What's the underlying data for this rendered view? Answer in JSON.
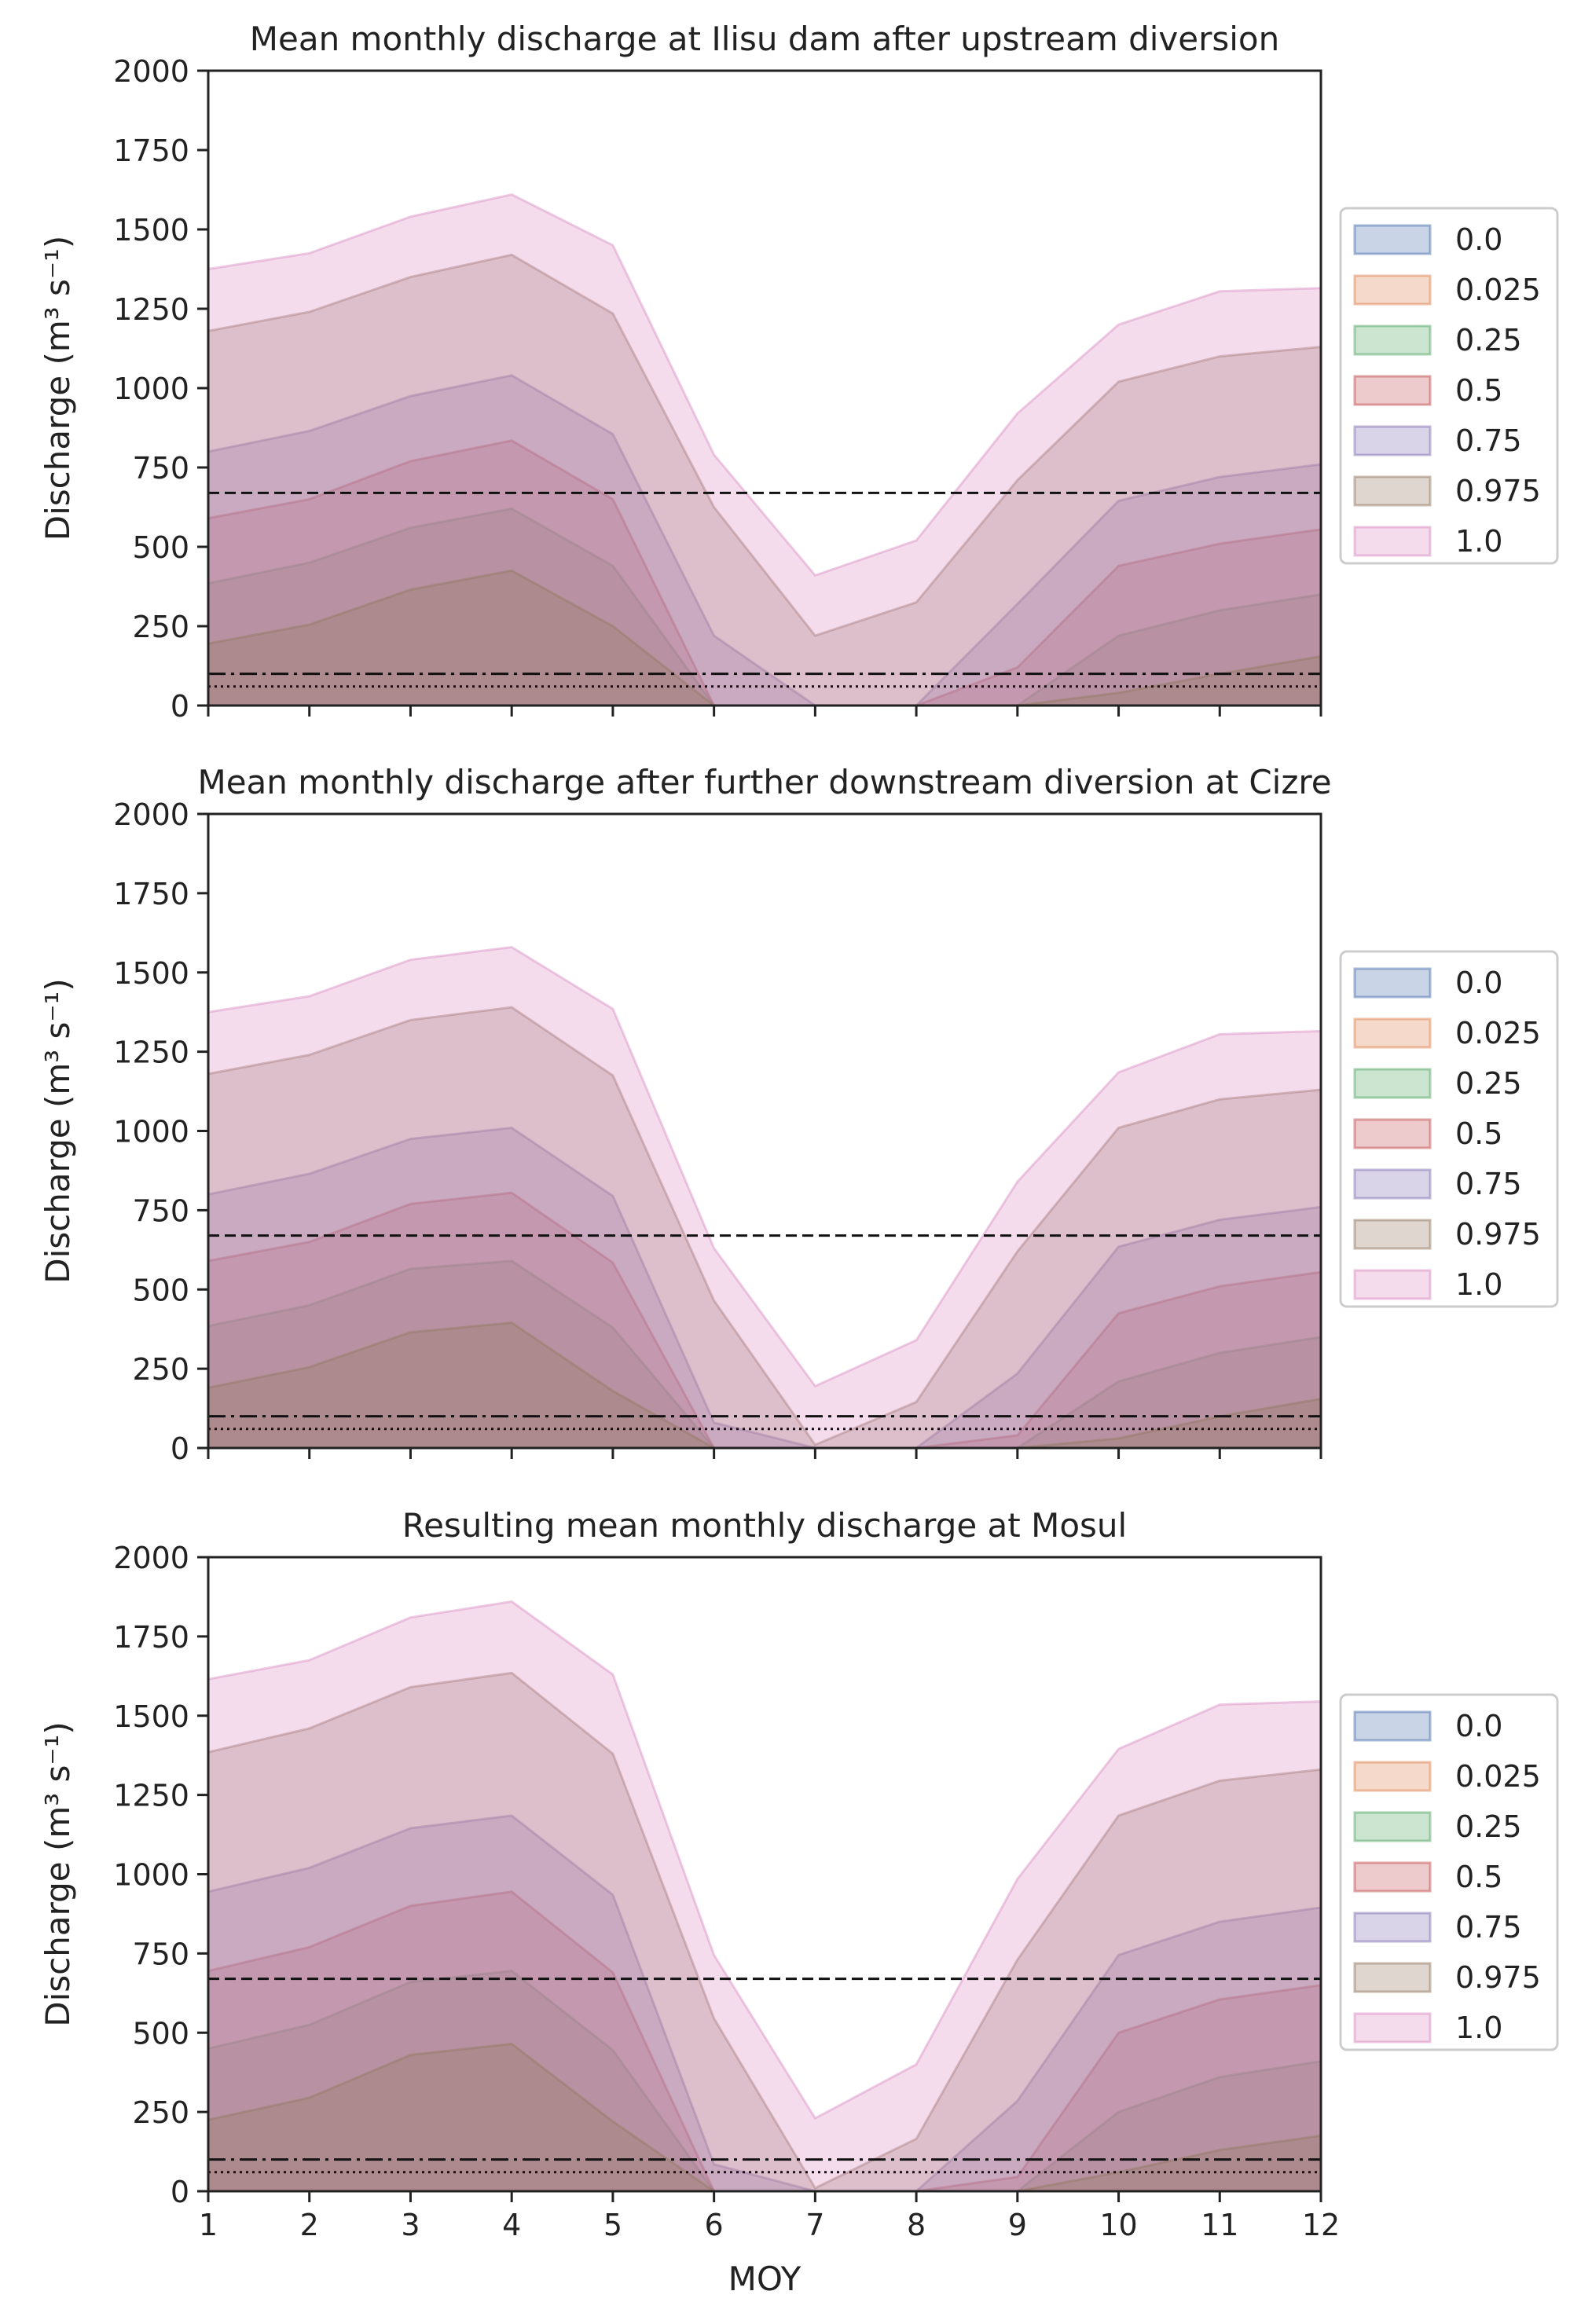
{
  "chart_data": [
    {
      "type": "area",
      "title": "Mean monthly discharge at Ilisu dam after upstream diversion",
      "xlabel": "",
      "ylabel": "Discharge (m³ s⁻¹)",
      "ylim": [
        0,
        2000
      ],
      "xlim": [
        1,
        12
      ],
      "x": [
        1,
        2,
        3,
        4,
        5,
        6,
        7,
        8,
        9,
        10,
        11,
        12
      ],
      "x_tick_labels_visible": false,
      "yticks": [
        "0",
        "250",
        "500",
        "750",
        "1000",
        "1250",
        "1500",
        "1750",
        "2000"
      ],
      "legend_position": "right",
      "grid": false,
      "series": [
        {
          "name": "0.0",
          "color": "#4c72b0",
          "values": [
            0,
            0,
            0,
            0,
            0,
            0,
            0,
            0,
            0,
            0,
            0,
            0
          ]
        },
        {
          "name": "0.025",
          "color": "#dd8452",
          "values": [
            0,
            0,
            0,
            0,
            0,
            0,
            0,
            0,
            0,
            0,
            0,
            0
          ]
        },
        {
          "name": "0.25",
          "color": "#55a868",
          "values": [
            385,
            450,
            560,
            620,
            440,
            0,
            0,
            0,
            0,
            220,
            300,
            350
          ]
        },
        {
          "name": "0.5",
          "color": "#c44e52",
          "values": [
            590,
            650,
            770,
            835,
            650,
            0,
            0,
            0,
            120,
            440,
            510,
            555
          ]
        },
        {
          "name": "0.75",
          "color": "#8172b3",
          "values": [
            800,
            865,
            975,
            1040,
            855,
            220,
            0,
            0,
            320,
            645,
            720,
            760
          ]
        },
        {
          "name": "0.975",
          "color": "#937860",
          "values": [
            1180,
            1240,
            1350,
            1420,
            1235,
            625,
            220,
            325,
            710,
            1020,
            1100,
            1130
          ]
        },
        {
          "name": "1.0",
          "color": "#da8bc3",
          "values": [
            1375,
            1425,
            1540,
            1610,
            1450,
            790,
            410,
            520,
            920,
            1200,
            1305,
            1315
          ]
        }
      ],
      "extra_band": {
        "color": "#937860",
        "values": [
          195,
          255,
          365,
          425,
          250,
          0,
          0,
          0,
          0,
          40,
          100,
          155
        ]
      },
      "reference_lines": [
        {
          "style": "dashed",
          "value": 670
        },
        {
          "style": "dashdot",
          "value": 100
        },
        {
          "style": "dotted",
          "value": 60
        }
      ]
    },
    {
      "type": "area",
      "title": "Mean monthly discharge after further downstream diversion at Cizre",
      "xlabel": "",
      "ylabel": "Discharge (m³ s⁻¹)",
      "ylim": [
        0,
        2000
      ],
      "xlim": [
        1,
        12
      ],
      "x": [
        1,
        2,
        3,
        4,
        5,
        6,
        7,
        8,
        9,
        10,
        11,
        12
      ],
      "x_tick_labels_visible": false,
      "yticks": [
        "0",
        "250",
        "500",
        "750",
        "1000",
        "1250",
        "1500",
        "1750",
        "2000"
      ],
      "legend_position": "right",
      "grid": false,
      "series": [
        {
          "name": "0.0",
          "color": "#4c72b0",
          "values": [
            0,
            0,
            0,
            0,
            0,
            0,
            0,
            0,
            0,
            0,
            0,
            0
          ]
        },
        {
          "name": "0.025",
          "color": "#dd8452",
          "values": [
            0,
            0,
            0,
            0,
            0,
            0,
            0,
            0,
            0,
            0,
            0,
            0
          ]
        },
        {
          "name": "0.25",
          "color": "#55a868",
          "values": [
            385,
            450,
            565,
            590,
            380,
            0,
            0,
            0,
            0,
            210,
            300,
            350
          ]
        },
        {
          "name": "0.5",
          "color": "#c44e52",
          "values": [
            590,
            650,
            770,
            805,
            585,
            0,
            0,
            0,
            40,
            425,
            510,
            555
          ]
        },
        {
          "name": "0.75",
          "color": "#8172b3",
          "values": [
            800,
            865,
            975,
            1010,
            795,
            80,
            0,
            0,
            235,
            635,
            720,
            760
          ]
        },
        {
          "name": "0.975",
          "color": "#937860",
          "values": [
            1180,
            1240,
            1350,
            1390,
            1175,
            465,
            10,
            145,
            620,
            1010,
            1100,
            1130
          ]
        },
        {
          "name": "1.0",
          "color": "#da8bc3",
          "values": [
            1375,
            1425,
            1540,
            1580,
            1385,
            630,
            195,
            340,
            840,
            1185,
            1305,
            1315
          ]
        }
      ],
      "extra_band": {
        "color": "#937860",
        "values": [
          190,
          255,
          365,
          395,
          180,
          0,
          0,
          0,
          0,
          30,
          100,
          155
        ]
      },
      "reference_lines": [
        {
          "style": "dashed",
          "value": 670
        },
        {
          "style": "dashdot",
          "value": 100
        },
        {
          "style": "dotted",
          "value": 60
        }
      ]
    },
    {
      "type": "area",
      "title": "Resulting mean monthly discharge at Mosul",
      "xlabel": "MOY",
      "ylabel": "Discharge (m³ s⁻¹)",
      "ylim": [
        0,
        2000
      ],
      "xlim": [
        1,
        12
      ],
      "x": [
        1,
        2,
        3,
        4,
        5,
        6,
        7,
        8,
        9,
        10,
        11,
        12
      ],
      "x_tick_labels_visible": true,
      "yticks": [
        "0",
        "250",
        "500",
        "750",
        "1000",
        "1250",
        "1500",
        "1750",
        "2000"
      ],
      "legend_position": "right",
      "grid": false,
      "series": [
        {
          "name": "0.0",
          "color": "#4c72b0",
          "values": [
            0,
            0,
            0,
            0,
            0,
            0,
            0,
            0,
            0,
            0,
            0,
            0
          ]
        },
        {
          "name": "0.025",
          "color": "#dd8452",
          "values": [
            0,
            0,
            0,
            0,
            0,
            0,
            0,
            0,
            0,
            0,
            0,
            0
          ]
        },
        {
          "name": "0.25",
          "color": "#55a868",
          "values": [
            450,
            525,
            660,
            695,
            445,
            0,
            0,
            0,
            0,
            250,
            360,
            410
          ]
        },
        {
          "name": "0.5",
          "color": "#c44e52",
          "values": [
            695,
            770,
            900,
            945,
            690,
            0,
            0,
            0,
            45,
            500,
            605,
            650
          ]
        },
        {
          "name": "0.75",
          "color": "#8172b3",
          "values": [
            945,
            1020,
            1145,
            1185,
            935,
            85,
            0,
            0,
            285,
            745,
            850,
            895
          ]
        },
        {
          "name": "0.975",
          "color": "#937860",
          "values": [
            1385,
            1460,
            1590,
            1635,
            1380,
            545,
            10,
            165,
            730,
            1185,
            1295,
            1330
          ]
        },
        {
          "name": "1.0",
          "color": "#da8bc3",
          "values": [
            1615,
            1675,
            1810,
            1860,
            1630,
            745,
            230,
            400,
            985,
            1395,
            1535,
            1545
          ]
        }
      ],
      "extra_band": {
        "color": "#937860",
        "values": [
          225,
          295,
          430,
          465,
          220,
          0,
          0,
          0,
          0,
          60,
          130,
          175
        ]
      },
      "reference_lines": [
        {
          "style": "dashed",
          "value": 670
        },
        {
          "style": "dashdot",
          "value": 100
        },
        {
          "style": "dotted",
          "value": 60
        }
      ]
    }
  ]
}
